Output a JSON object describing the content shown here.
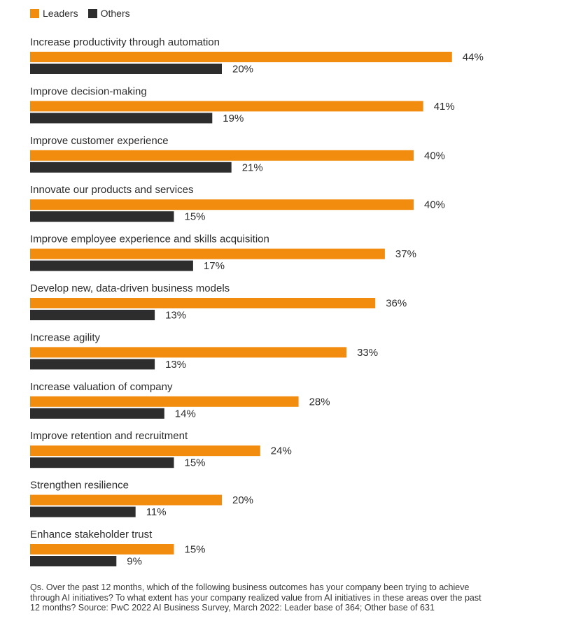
{
  "chart_data": {
    "type": "bar",
    "orientation": "horizontal",
    "value_format": "percent",
    "categories": [
      "Increase productivity through automation",
      "Improve decision-making",
      "Improve customer experience",
      "Innovate our products and services",
      "Improve employee experience and skills acquisition",
      "Develop new, data-driven business models",
      "Increase agility",
      "Increase valuation of company",
      "Improve retention and recruitment",
      "Strengthen resilience",
      "Enhance stakeholder trust"
    ],
    "series": [
      {
        "name": "Leaders",
        "color": "#F28C0F",
        "values": [
          44,
          41,
          40,
          40,
          37,
          36,
          33,
          28,
          24,
          20,
          15
        ]
      },
      {
        "name": "Others",
        "color": "#2D2D2D",
        "values": [
          20,
          19,
          21,
          15,
          17,
          13,
          13,
          14,
          15,
          11,
          9
        ]
      }
    ],
    "legend_placement": "top-left",
    "grid": false
  },
  "footnote": "Qs. Over the past 12 months, which of the following business outcomes has your company been trying to achieve through AI initiatives? To what extent has your company realized value from AI initiatives in these areas over the past 12 months? Source: PwC 2022 AI Business Survey, March 2022: Leader base of 364; Other base of 631"
}
